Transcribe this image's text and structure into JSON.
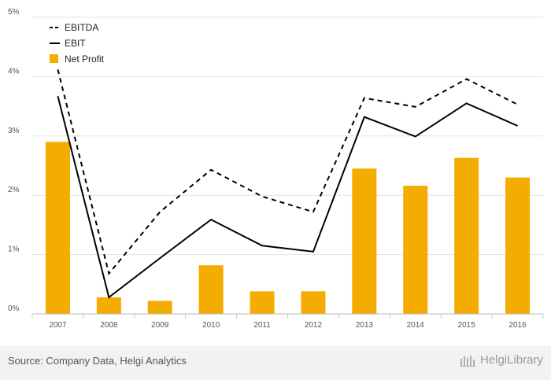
{
  "chart_data": {
    "type": "bar",
    "categories": [
      "2007",
      "2008",
      "2009",
      "2010",
      "2011",
      "2012",
      "2013",
      "2014",
      "2015",
      "2016"
    ],
    "series": [
      {
        "name": "Net Profit",
        "type": "bar",
        "color": "#f5ac00",
        "values": [
          2.9,
          0.28,
          0.22,
          0.82,
          0.38,
          0.38,
          2.45,
          2.16,
          2.63,
          2.3
        ]
      },
      {
        "name": "EBITDA",
        "type": "line",
        "style": "dashed",
        "color": "#000000",
        "values": [
          4.12,
          0.68,
          1.72,
          2.43,
          1.98,
          1.72,
          3.64,
          3.49,
          3.96,
          3.53
        ]
      },
      {
        "name": "EBIT",
        "type": "line",
        "style": "solid",
        "color": "#000000",
        "values": [
          3.67,
          0.28,
          0.94,
          1.59,
          1.15,
          1.05,
          3.32,
          2.99,
          3.55,
          3.17
        ]
      }
    ],
    "ylim": [
      0,
      5
    ],
    "yticks": [
      "0%",
      "1%",
      "2%",
      "3%",
      "4%",
      "5%"
    ],
    "grid": true,
    "legend_position": "top-left"
  },
  "legend": {
    "ebitda": "EBITDA",
    "ebit": "EBIT",
    "net_profit": "Net Profit"
  },
  "footer": {
    "source": "Source: Company Data, Helgi Analytics",
    "brand": "HelgiLibrary"
  }
}
